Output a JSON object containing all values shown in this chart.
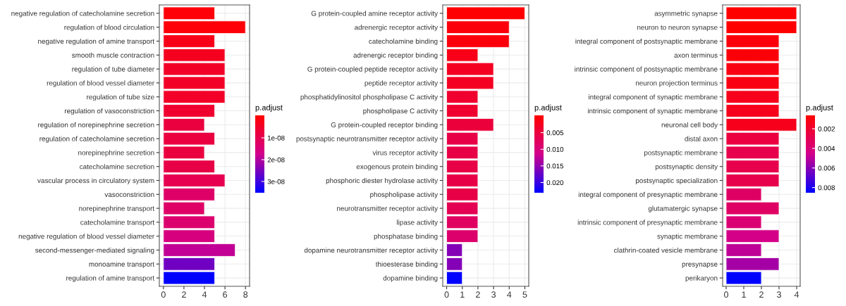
{
  "chart_data": [
    {
      "type": "bar",
      "orientation": "horizontal",
      "grid": true,
      "clabel": "p.adjust",
      "categories": [
        "negative regulation of catecholamine secretion",
        "regulation of blood circulation",
        "negative regulation of amine transport",
        "smooth muscle contraction",
        "regulation of tube diameter",
        "regulation of blood vessel diameter",
        "regulation of tube size",
        "regulation of vasoconstriction",
        "regulation of norepinephrine secretion",
        "regulation of catecholamine secretion",
        "norepinephrine secretion",
        "catecholamine secretion",
        "vascular process in circulatory system",
        "vasoconstriction",
        "norepinephrine transport",
        "catecholamine transport",
        "negative regulation of blood vessel diameter",
        "second-messenger-mediated signaling",
        "monoamine transport",
        "regulation of amine transport"
      ],
      "values": [
        5,
        8,
        5,
        6,
        6,
        6,
        6,
        5,
        4,
        5,
        4,
        5,
        6,
        5,
        4,
        5,
        5,
        7,
        5,
        5
      ],
      "cvalues": [
        1e-09,
        1e-09,
        3e-09,
        4e-09,
        5e-09,
        5e-09,
        5e-09,
        6e-09,
        8e-09,
        8e-09,
        8e-09,
        9e-09,
        1e-08,
        1.3e-08,
        1.3e-08,
        1.4e-08,
        1.6e-08,
        1.9e-08,
        2.6e-08,
        3.55e-08
      ],
      "xlim": [
        -0.4,
        8.4
      ],
      "xticks": [
        0,
        2,
        4,
        6,
        8
      ],
      "clim": [
        3.55e-08,
        0
      ],
      "cticks": [
        {
          "value": 1e-08,
          "label": "1e-08"
        },
        {
          "value": 2e-08,
          "label": "2e-08"
        },
        {
          "value": 3e-08,
          "label": "3e-08"
        }
      ]
    },
    {
      "type": "bar",
      "orientation": "horizontal",
      "grid": true,
      "clabel": "p.adjust",
      "categories": [
        "G protein-coupled amine receptor activity",
        "adrenergic receptor activity",
        "catecholamine binding",
        "adrenergic receptor binding",
        "G protein-coupled peptide receptor activity",
        "peptide receptor activity",
        "phosphatidylinositol phospholipase C activity",
        "phospholipase C activity",
        "G protein-coupled receptor binding",
        "postsynaptic neurotransmitter receptor activity",
        "virus receptor activity",
        "exogenous protein binding",
        "phosphoric diester hydrolase activity",
        "phospholipase activity",
        "neurotransmitter receptor activity",
        "lipase activity",
        "phosphatase binding",
        "dopamine neurotransmitter receptor activity",
        "thioesterase binding",
        "dopamine binding"
      ],
      "values": [
        5,
        4,
        4,
        2,
        3,
        3,
        2,
        2,
        3,
        2,
        2,
        2,
        2,
        2,
        2,
        2,
        2,
        1,
        1,
        1
      ],
      "cvalues": [
        0.0002,
        0.001,
        0.001,
        0.002,
        0.003,
        0.003,
        0.004,
        0.004,
        0.005,
        0.006,
        0.006,
        0.006,
        0.006,
        0.006,
        0.007,
        0.008,
        0.009,
        0.016,
        0.016,
        0.0233
      ],
      "xlim": [
        -0.25,
        5.25
      ],
      "xticks": [
        0,
        1,
        2,
        3,
        4,
        5
      ],
      "clim": [
        0.0233,
        0
      ],
      "cticks": [
        {
          "value": 0.005,
          "label": "0.005"
        },
        {
          "value": 0.01,
          "label": "0.010"
        },
        {
          "value": 0.015,
          "label": "0.015"
        },
        {
          "value": 0.02,
          "label": "0.020"
        }
      ]
    },
    {
      "type": "bar",
      "orientation": "horizontal",
      "grid": true,
      "clabel": "p.adjust",
      "categories": [
        "asymmetric synapse",
        "neuron to neuron synapse",
        "integral component of postsynaptic membrane",
        "axon terminus",
        "intrinsic component of postsynaptic membrane",
        "neuron projection terminus",
        "integral component of synaptic membrane",
        "intrinsic component of synaptic membrane",
        "neuronal cell body",
        "distal axon",
        "postsynaptic membrane",
        "postsynaptic density",
        "postsynaptic specialization",
        "integral component of presynaptic membrane",
        "glutamatergic synapse",
        "intrinsic component of presynaptic membrane",
        "synaptic membrane",
        "clathrin-coated vesicle membrane",
        "presynapse",
        "perikaryon"
      ],
      "values": [
        4,
        4,
        3,
        3,
        3,
        3,
        3,
        3,
        4,
        3,
        3,
        3,
        3,
        2,
        3,
        2,
        3,
        2,
        3,
        2
      ],
      "cvalues": [
        0.0007,
        0.0007,
        0.001,
        0.001,
        0.0012,
        0.0012,
        0.0015,
        0.0015,
        0.0015,
        0.0025,
        0.0028,
        0.0028,
        0.0028,
        0.0035,
        0.0035,
        0.004,
        0.0045,
        0.005,
        0.0055,
        0.0086
      ],
      "xlim": [
        -0.2,
        4.2
      ],
      "xticks": [
        0,
        1,
        2,
        3,
        4
      ],
      "clim": [
        0.0086,
        0.0007
      ],
      "cticks": [
        {
          "value": 0.002,
          "label": "0.002"
        },
        {
          "value": 0.004,
          "label": "0.004"
        },
        {
          "value": 0.006,
          "label": "0.006"
        },
        {
          "value": 0.008,
          "label": "0.008"
        }
      ]
    }
  ]
}
